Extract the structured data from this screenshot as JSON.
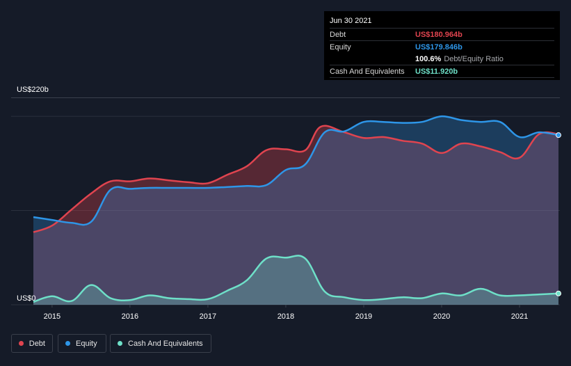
{
  "chart_data": {
    "type": "area",
    "title": "",
    "y_top_label": "US$220b",
    "y_bottom_label": "US$0",
    "ylim": [
      0,
      220
    ],
    "xlim": [
      2014.76,
      2021.5
    ],
    "x_ticks": [
      "2015",
      "2016",
      "2017",
      "2018",
      "2019",
      "2020",
      "2021"
    ],
    "series": [
      {
        "name": "Debt",
        "color": "#e0444f",
        "points": [
          [
            2014.76,
            77
          ],
          [
            2015.0,
            84
          ],
          [
            2015.25,
            101
          ],
          [
            2015.5,
            118
          ],
          [
            2015.75,
            131
          ],
          [
            2016.0,
            131
          ],
          [
            2016.25,
            134
          ],
          [
            2016.5,
            132
          ],
          [
            2016.75,
            130
          ],
          [
            2017.0,
            129
          ],
          [
            2017.25,
            138
          ],
          [
            2017.5,
            147
          ],
          [
            2017.75,
            164
          ],
          [
            2018.0,
            165
          ],
          [
            2018.25,
            164
          ],
          [
            2018.45,
            189
          ],
          [
            2018.75,
            183
          ],
          [
            2019.0,
            177
          ],
          [
            2019.25,
            178
          ],
          [
            2019.5,
            174
          ],
          [
            2019.75,
            171
          ],
          [
            2020.0,
            161
          ],
          [
            2020.25,
            171
          ],
          [
            2020.5,
            168
          ],
          [
            2020.75,
            162
          ],
          [
            2021.0,
            156
          ],
          [
            2021.25,
            181
          ],
          [
            2021.5,
            181
          ]
        ]
      },
      {
        "name": "Equity",
        "color": "#2e96e8",
        "points": [
          [
            2014.76,
            93
          ],
          [
            2015.0,
            90
          ],
          [
            2015.25,
            87
          ],
          [
            2015.5,
            88
          ],
          [
            2015.75,
            122
          ],
          [
            2016.0,
            123
          ],
          [
            2016.25,
            124
          ],
          [
            2016.5,
            124
          ],
          [
            2016.75,
            124
          ],
          [
            2017.0,
            124
          ],
          [
            2017.25,
            125
          ],
          [
            2017.5,
            126
          ],
          [
            2017.75,
            127
          ],
          [
            2018.0,
            143
          ],
          [
            2018.25,
            149
          ],
          [
            2018.5,
            183
          ],
          [
            2018.75,
            184
          ],
          [
            2019.0,
            194
          ],
          [
            2019.25,
            194
          ],
          [
            2019.5,
            193
          ],
          [
            2019.75,
            194
          ],
          [
            2020.0,
            200
          ],
          [
            2020.25,
            196
          ],
          [
            2020.5,
            194
          ],
          [
            2020.75,
            194
          ],
          [
            2021.0,
            178
          ],
          [
            2021.25,
            183
          ],
          [
            2021.5,
            180
          ]
        ]
      },
      {
        "name": "Cash And Equivalents",
        "color": "#6ee0c8",
        "points": [
          [
            2014.76,
            3
          ],
          [
            2015.0,
            9
          ],
          [
            2015.25,
            4
          ],
          [
            2015.5,
            21
          ],
          [
            2015.75,
            7
          ],
          [
            2016.0,
            5
          ],
          [
            2016.25,
            10
          ],
          [
            2016.5,
            7
          ],
          [
            2016.75,
            6
          ],
          [
            2017.0,
            6
          ],
          [
            2017.25,
            15
          ],
          [
            2017.5,
            26
          ],
          [
            2017.75,
            49
          ],
          [
            2018.0,
            50
          ],
          [
            2018.25,
            49
          ],
          [
            2018.5,
            14
          ],
          [
            2018.75,
            8
          ],
          [
            2019.0,
            5
          ],
          [
            2019.25,
            6
          ],
          [
            2019.5,
            8
          ],
          [
            2019.75,
            7
          ],
          [
            2020.0,
            12
          ],
          [
            2020.25,
            10
          ],
          [
            2020.5,
            17
          ],
          [
            2020.75,
            10
          ],
          [
            2021.0,
            10
          ],
          [
            2021.25,
            11
          ],
          [
            2021.5,
            12
          ]
        ]
      }
    ],
    "tooltip": {
      "date": "Jun 30 2021",
      "rows": [
        {
          "label": "Debt",
          "value": "US$180.964b",
          "color": "#e0444f"
        },
        {
          "label": "Equity",
          "value": "US$179.846b",
          "color": "#2e96e8"
        },
        {
          "label": "",
          "value": "100.6%",
          "suffix": "Debt/Equity Ratio",
          "color": "#ffffff"
        },
        {
          "label": "Cash And Equivalents",
          "value": "US$11.920b",
          "color": "#6ee0c8"
        }
      ]
    },
    "legend": [
      {
        "label": "Debt",
        "color": "#e0444f"
      },
      {
        "label": "Equity",
        "color": "#2e96e8"
      },
      {
        "label": "Cash And Equivalents",
        "color": "#6ee0c8"
      }
    ]
  }
}
